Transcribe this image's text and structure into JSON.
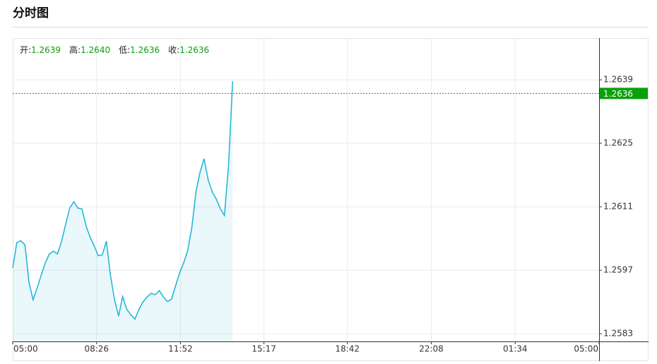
{
  "title": "分时图",
  "chart_data": {
    "type": "line",
    "header": [
      {
        "key": "开:",
        "value": "1.2639"
      },
      {
        "key": "高:",
        "value": "1.2640"
      },
      {
        "key": "低:",
        "value": "1.2636"
      },
      {
        "key": "收:",
        "value": "1.2636"
      }
    ],
    "x": [
      "05:00",
      "05:10",
      "05:20",
      "05:30",
      "05:40",
      "05:50",
      "06:00",
      "06:10",
      "06:20",
      "06:30",
      "06:40",
      "06:50",
      "07:00",
      "07:10",
      "07:20",
      "07:30",
      "07:40",
      "07:50",
      "08:00",
      "08:10",
      "08:20",
      "08:30",
      "08:40",
      "08:50",
      "09:00",
      "09:10",
      "09:20",
      "09:30",
      "09:40",
      "09:50",
      "10:00",
      "10:10",
      "10:20",
      "10:30",
      "10:40",
      "10:50",
      "11:00",
      "11:10",
      "11:20",
      "11:30",
      "11:40",
      "11:50",
      "12:00",
      "12:10",
      "12:20",
      "12:30",
      "12:40",
      "12:50",
      "13:00",
      "13:10",
      "13:20",
      "13:30",
      "13:40",
      "13:50",
      "14:00"
    ],
    "series": [
      {
        "color": "#1ab4d6",
        "values": [
          1.25975,
          1.26031,
          1.26035,
          1.26026,
          1.25943,
          1.25905,
          1.25931,
          1.25959,
          1.25986,
          1.26006,
          1.26012,
          1.26006,
          1.26034,
          1.26071,
          1.26107,
          1.26121,
          1.26107,
          1.26105,
          1.26068,
          1.26043,
          1.26024,
          1.26002,
          1.26004,
          1.26034,
          1.25959,
          1.25905,
          1.25869,
          1.25912,
          1.25884,
          1.25872,
          1.25862,
          1.25884,
          1.259,
          1.25911,
          1.25919,
          1.25916,
          1.25925,
          1.25911,
          1.25901,
          1.25906,
          1.25936,
          1.25964,
          1.25987,
          1.26014,
          1.26065,
          1.26143,
          1.26186,
          1.26216,
          1.26169,
          1.26143,
          1.26127,
          1.26105,
          1.26091,
          1.262,
          1.26387
        ]
      }
    ],
    "price_line": 1.2636,
    "price_color": "#0aa00a",
    "xticks": [
      "05:00",
      "08:26",
      "11:52",
      "15:17",
      "18:42",
      "22:08",
      "01:34",
      "05:00"
    ],
    "ylim": [
      1.25813,
      1.26482
    ],
    "yticks": [
      1.2639,
      1.2625,
      1.2611,
      1.2597,
      1.2583
    ],
    "grid": true
  }
}
